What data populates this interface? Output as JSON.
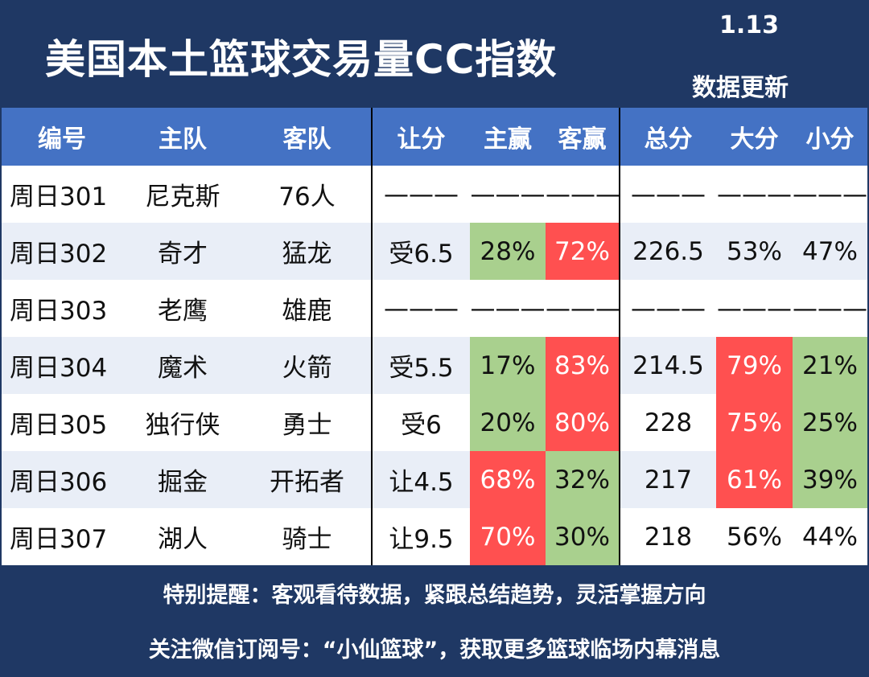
{
  "header": {
    "title": "美国本土篮球交易量CC指数",
    "date": "1.13",
    "update_label": "数据更新"
  },
  "columns": [
    "编号",
    "主队",
    "客队",
    "让分",
    "主赢",
    "客赢",
    "总分",
    "大分",
    "小分"
  ],
  "rows": [
    {
      "id": "周日301",
      "home": "尼克斯",
      "away": "76人",
      "handicap": "———",
      "home_win": "———",
      "away_win": "———",
      "total": "———",
      "over": "———",
      "under": "———"
    },
    {
      "id": "周日302",
      "home": "奇才",
      "away": "猛龙",
      "handicap": "受6.5",
      "home_win": "28%",
      "away_win": "72%",
      "total": "226.5",
      "over": "53%",
      "under": "47%"
    },
    {
      "id": "周日303",
      "home": "老鹰",
      "away": "雄鹿",
      "handicap": "———",
      "home_win": "———",
      "away_win": "———",
      "total": "———",
      "over": "———",
      "under": "———"
    },
    {
      "id": "周日304",
      "home": "魔术",
      "away": "火箭",
      "handicap": "受5.5",
      "home_win": "17%",
      "away_win": "83%",
      "total": "214.5",
      "over": "79%",
      "under": "21%"
    },
    {
      "id": "周日305",
      "home": "独行侠",
      "away": "勇士",
      "handicap": "受6",
      "home_win": "20%",
      "away_win": "80%",
      "total": "228",
      "over": "75%",
      "under": "25%"
    },
    {
      "id": "周日306",
      "home": "掘金",
      "away": "开拓者",
      "handicap": "让4.5",
      "home_win": "68%",
      "away_win": "32%",
      "total": "217",
      "over": "61%",
      "under": "39%"
    },
    {
      "id": "周日307",
      "home": "湖人",
      "away": "骑士",
      "handicap": "让9.5",
      "home_win": "70%",
      "away_win": "30%",
      "total": "218",
      "over": "56%",
      "under": "44%"
    }
  ],
  "footer": {
    "line1": "特别提醒：客观看待数据，紧跟总结趋势，灵活掌握方向",
    "line2": "关注微信订阅号：“小仙篮球”，获取更多篮球临场内幕消息"
  },
  "colors": {
    "background": "#1f3864",
    "header_row": "#4472c4",
    "highlight_green": "#a9d08e",
    "highlight_red": "#ff5050",
    "alt_row": "#e9eef7"
  }
}
